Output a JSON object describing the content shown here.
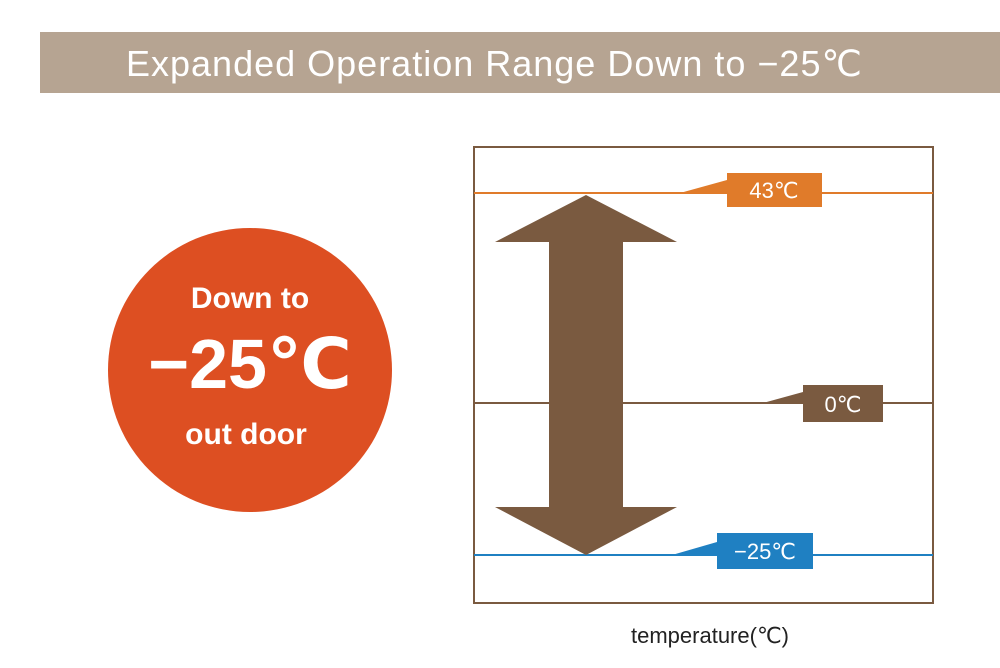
{
  "header": {
    "title": "Expanded Operation Range Down to −25℃"
  },
  "badge": {
    "lines": [
      "Down to",
      "−25℃",
      "out door"
    ]
  },
  "levels": [
    {
      "label": "43℃"
    },
    {
      "label": "0℃"
    },
    {
      "label": "−25℃"
    }
  ],
  "axis_label": "temperature(℃)"
}
